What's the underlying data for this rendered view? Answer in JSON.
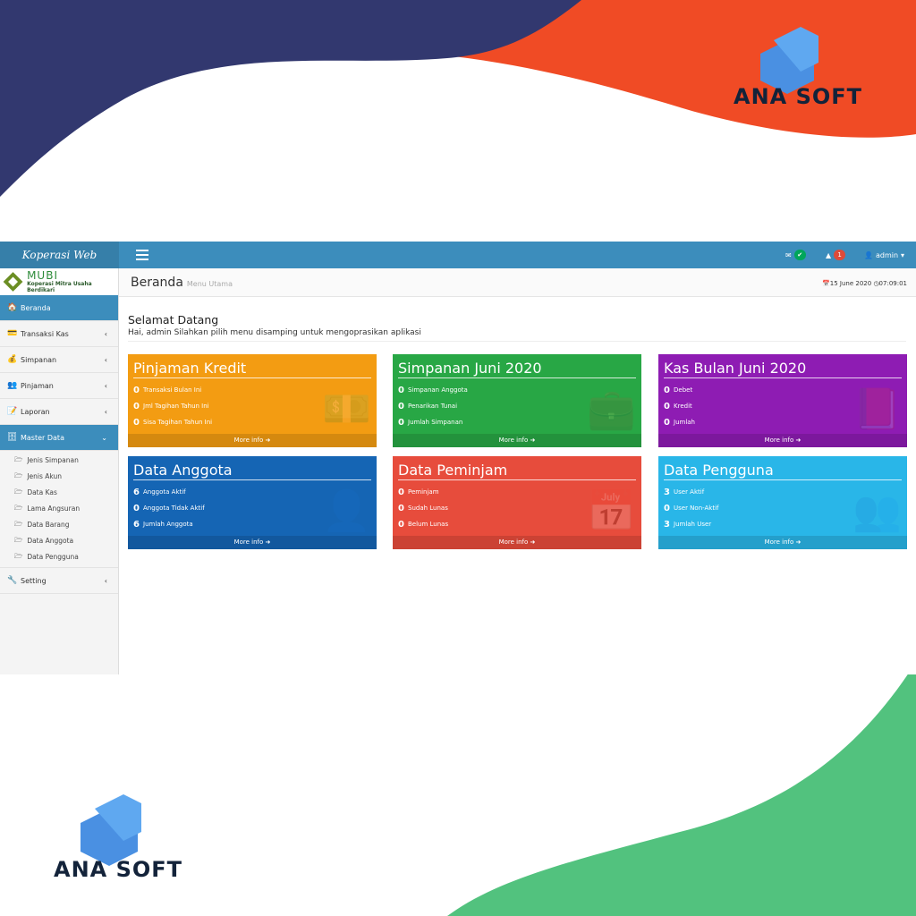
{
  "brand": {
    "text": "ANA SOFT",
    "colors": {
      "navy": "#32386f",
      "orange": "#f04b25",
      "green": "#52c27e",
      "cube": "#4a90e2"
    }
  },
  "topbar": {
    "app_name": "Koperasi Web",
    "user": "admin",
    "alerts_count": "1"
  },
  "sidebar": {
    "logo_title": "MUBI",
    "logo_subtitle": "Koperasi Mitra Usaha Berdikari",
    "items": [
      {
        "label": "Beranda",
        "icon": "home-icon"
      },
      {
        "label": "Transaksi Kas",
        "icon": "cash-register-icon"
      },
      {
        "label": "Simpanan",
        "icon": "savings-icon"
      },
      {
        "label": "Pinjaman",
        "icon": "people-icon"
      },
      {
        "label": "Laporan",
        "icon": "report-icon"
      },
      {
        "label": "Master Data",
        "icon": "database-icon"
      }
    ],
    "master_sub": [
      "Jenis Simpanan",
      "Jenis Akun",
      "Data Kas",
      "Lama Angsuran",
      "Data Barang",
      "Data Anggota",
      "Data Pengguna"
    ],
    "setting": "Setting"
  },
  "header": {
    "title": "Beranda",
    "subtitle": "Menu Utama",
    "date": "15 June 2020",
    "time": "07:09:01"
  },
  "welcome": {
    "title": "Selamat Datang",
    "text": "Hai, admin Silahkan pilih menu disamping untuk mengoprasikan aplikasi"
  },
  "boxes": [
    {
      "title": "Pinjaman Kredit",
      "color": "#f39c12",
      "icon": "money-icon",
      "rows": [
        {
          "v": "0",
          "l": "Transaksi Bulan Ini"
        },
        {
          "v": "0",
          "l": "Jml Tagihan Tahun Ini"
        },
        {
          "v": "0",
          "l": "Sisa Tagihan Tahun Ini"
        }
      ],
      "more": "More info"
    },
    {
      "title": "Simpanan Juni 2020",
      "color": "#28a745",
      "icon": "briefcase-icon",
      "rows": [
        {
          "v": "0",
          "l": "Simpanan Anggota"
        },
        {
          "v": "0",
          "l": "Penarikan Tunai"
        },
        {
          "v": "0",
          "l": "Jumlah Simpanan"
        }
      ],
      "more": "More info"
    },
    {
      "title": "Kas Bulan Juni 2020",
      "color": "#8e1cb3",
      "icon": "book-icon",
      "rows": [
        {
          "v": "0",
          "l": "Debet"
        },
        {
          "v": "0",
          "l": "Kredit"
        },
        {
          "v": "0",
          "l": "Jumlah"
        }
      ],
      "more": "More info"
    },
    {
      "title": "Data Anggota",
      "color": "#1565b4",
      "icon": "user-plus-icon",
      "rows": [
        {
          "v": "6",
          "l": "Anggota Aktif"
        },
        {
          "v": "0",
          "l": "Anggota Tidak Aktif"
        },
        {
          "v": "6",
          "l": "Jumlah Anggota"
        }
      ],
      "more": "More info"
    },
    {
      "title": "Data Peminjam",
      "color": "#e74c3c",
      "icon": "calendar-icon",
      "rows": [
        {
          "v": "0",
          "l": "Peminjam"
        },
        {
          "v": "0",
          "l": "Sudah Lunas"
        },
        {
          "v": "0",
          "l": "Belum Lunas"
        }
      ],
      "more": "More info"
    },
    {
      "title": "Data Pengguna",
      "color": "#29b6e8",
      "icon": "users-icon",
      "rows": [
        {
          "v": "3",
          "l": "User Aktif"
        },
        {
          "v": "0",
          "l": "User Non-Aktif"
        },
        {
          "v": "3",
          "l": "Jumlah User"
        }
      ],
      "more": "More info"
    }
  ]
}
